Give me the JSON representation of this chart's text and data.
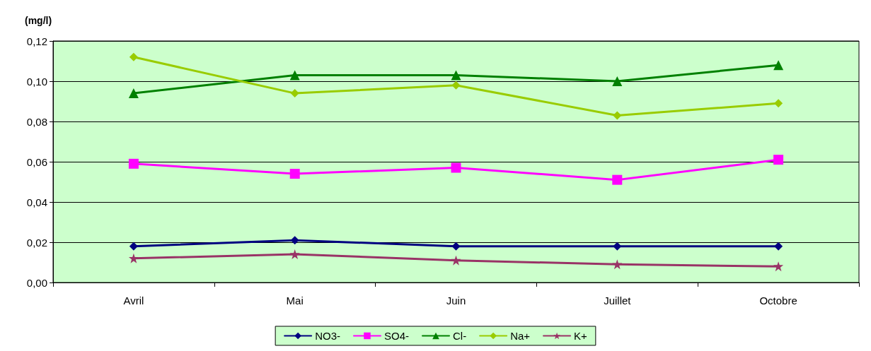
{
  "chart_data": {
    "type": "line",
    "ylabel": "(mg/l)",
    "categories": [
      "Avril",
      "Mai",
      "Juin",
      "Juillet",
      "Octobre"
    ],
    "series": [
      {
        "name": "NO3-",
        "color": "#000080",
        "marker": "diamond",
        "values": [
          0.018,
          0.021,
          0.018,
          0.018,
          0.018
        ]
      },
      {
        "name": "SO4-",
        "color": "#ff00ff",
        "marker": "square",
        "values": [
          0.059,
          0.054,
          0.057,
          0.051,
          0.061
        ]
      },
      {
        "name": "Cl-",
        "color": "#008000",
        "marker": "triangle",
        "values": [
          0.094,
          0.103,
          0.103,
          0.1,
          0.108
        ]
      },
      {
        "name": "Na+",
        "color": "#99cc00",
        "marker": "diamond",
        "values": [
          0.112,
          0.094,
          0.098,
          0.083,
          0.089
        ]
      },
      {
        "name": "K+",
        "color": "#993366",
        "marker": "star",
        "values": [
          0.012,
          0.014,
          0.011,
          0.009,
          0.008
        ]
      }
    ],
    "ylim": [
      0,
      0.12
    ],
    "yticks": [
      {
        "value": 0,
        "label": "0,00"
      },
      {
        "value": 0.02,
        "label": "0,02"
      },
      {
        "value": 0.04,
        "label": "0,04"
      },
      {
        "value": 0.06,
        "label": "0,06"
      },
      {
        "value": 0.08,
        "label": "0,08"
      },
      {
        "value": 0.1,
        "label": "0,10"
      },
      {
        "value": 0.12,
        "label": "0,12"
      }
    ],
    "grid": "y",
    "legend": "bottom",
    "line_style": "solid"
  }
}
